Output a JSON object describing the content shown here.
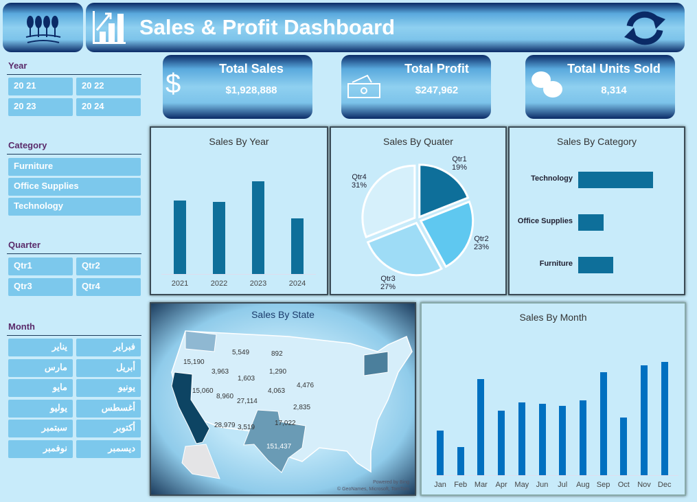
{
  "header": {
    "title": "Sales & Profit Dashboard",
    "logo_icon": "wheat-icon",
    "chart_icon": "bar-chart-icon",
    "refresh_icon": "refresh-icon"
  },
  "slicers": {
    "year": {
      "label": "Year",
      "items": [
        "20 21",
        "20 22",
        "20 23",
        "20 24"
      ]
    },
    "category": {
      "label": "Category",
      "items": [
        "Furniture",
        "Office Supplies",
        "Technology"
      ]
    },
    "quarter": {
      "label": "Quarter",
      "items": [
        "Qtr1",
        "Qtr2",
        "Qtr3",
        "Qtr4"
      ]
    },
    "month": {
      "label": "Month",
      "items": [
        "يناير",
        "فبراير",
        "مارس",
        "أبريل",
        "مايو",
        "يونيو",
        "يوليو",
        "أغسطس",
        "سبتمبر",
        "أكتوبر",
        "نوفمبر",
        "ديسمبر"
      ]
    }
  },
  "kpis": [
    {
      "title": "Total Sales",
      "value": "$1,928,888",
      "icon": "dollar-icon"
    },
    {
      "title": "Total Profit",
      "value": "$247,962",
      "icon": "banknote-icon"
    },
    {
      "title": "Total Units Sold",
      "value": "8,314",
      "icon": "coins-icon"
    }
  ],
  "colors": {
    "accent": "#0e6f9a",
    "month_bar": "#0070c0",
    "header_dark": "#0a2a66"
  },
  "chart_data": [
    {
      "type": "bar",
      "title": "Sales By Year",
      "categories": [
        "2021",
        "2022",
        "2023",
        "2024"
      ],
      "values": [
        115,
        112,
        145,
        87
      ]
    },
    {
      "type": "pie",
      "title": "Sales By Quater",
      "categories": [
        "Qtr1",
        "Qtr2",
        "Qtr3",
        "Qtr4"
      ],
      "values": [
        19,
        23,
        27,
        31
      ],
      "labels": [
        "19%",
        "23%",
        "27%",
        "31%"
      ],
      "colors": [
        "#0e6f9a",
        "#5fc8f0",
        "#9edcf6",
        "#d6f0fb"
      ]
    },
    {
      "type": "bar",
      "orientation": "horizontal",
      "title": "Sales By Category",
      "categories": [
        "Technology",
        "Office Supplies",
        "Furniture"
      ],
      "values": [
        109,
        37,
        51
      ]
    },
    {
      "type": "map",
      "title": "Sales By State",
      "values": [
        "15,190",
        "5,549",
        "892",
        "3,963",
        "1,290",
        "1,603",
        "15,060",
        "4,063",
        "4,476",
        "8,960",
        "27,114",
        "2,835",
        "28,979",
        "3,519",
        "17,022",
        "151,437"
      ],
      "attribution": [
        "Powered by Bing",
        "© GeoNames, Microsoft, TomTom"
      ]
    },
    {
      "type": "bar",
      "title": "Sales By Month",
      "categories": [
        "Jan",
        "Feb",
        "Mar",
        "Apr",
        "May",
        "Jun",
        "Jul",
        "Aug",
        "Sep",
        "Oct",
        "Nov",
        "Dec"
      ],
      "values": [
        65,
        41,
        140,
        94,
        106,
        104,
        101,
        109,
        150,
        84,
        160,
        165
      ]
    }
  ]
}
